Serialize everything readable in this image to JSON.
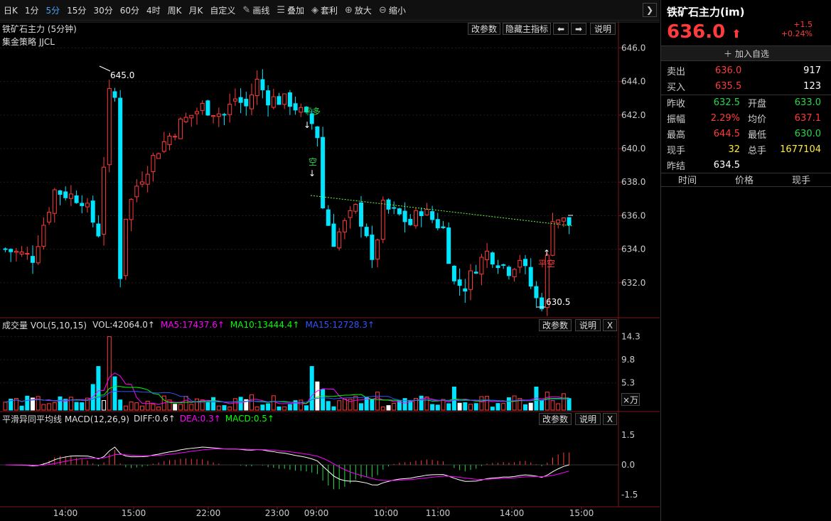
{
  "toolbar": {
    "periods": [
      "日K",
      "1分",
      "5分",
      "15分",
      "30分",
      "60分",
      "4时",
      "周K",
      "月K",
      "自定义"
    ],
    "active_period": "5分",
    "draw_line": "画线",
    "overlay": "叠加",
    "arbitrage": "套利",
    "zoom_in": "放大",
    "zoom_out": "缩小"
  },
  "main_panel": {
    "title": "铁矿石主力 (5分钟)",
    "strategy": "集金策略 JJCL",
    "buttons": {
      "change_params": "改参数",
      "hide_indicator": "隐藏主指标",
      "explain": "说明"
    },
    "y_ticks": [
      "646.0",
      "644.0",
      "642.0",
      "640.0",
      "638.0",
      "636.0",
      "634.0",
      "632.0"
    ],
    "high_label": "645.0",
    "low_label": "630.5",
    "signals": {
      "close_long": "平多",
      "short": "空",
      "close_short": "平空"
    }
  },
  "volume_panel": {
    "label": "成交量 VOL(5,10,15)",
    "vol": "VOL:42064.0↑",
    "ma5": "MA5:17437.6↑",
    "ma10": "MA10:13444.4↑",
    "ma15": "MA15:12728.3↑",
    "y_ticks": [
      "14.3",
      "9.8",
      "5.3"
    ],
    "unit": "×万",
    "buttons": {
      "change_params": "改参数",
      "explain": "说明",
      "close": "X"
    }
  },
  "macd_panel": {
    "label": "平滑异同平均线 MACD(12,26,9)",
    "diff": "DIFF:0.6↑",
    "dea": "DEA:0.3↑",
    "macd": "MACD:0.5↑",
    "y_ticks": [
      "1.5",
      "0.0",
      "-1.5"
    ],
    "buttons": {
      "change_params": "改参数",
      "explain": "说明",
      "close": "X"
    }
  },
  "time_axis": [
    "14:00",
    "15:00",
    "22:00",
    "23:00",
    "09:00",
    "10:00",
    "11:00",
    "14:00",
    "15:00"
  ],
  "quote": {
    "name": "铁矿石主力(im)",
    "price": "636.0",
    "change": "+1.5",
    "change_pct": "+0.24%",
    "add_watch": "加入自选",
    "sell_label": "卖出",
    "sell_price": "636.0",
    "sell_qty": "917",
    "buy_label": "买入",
    "buy_price": "635.5",
    "buy_qty": "123",
    "prev_close_label": "昨收",
    "prev_close": "632.5",
    "open_label": "开盘",
    "open": "633.0",
    "amplitude_label": "振幅",
    "amplitude": "2.29%",
    "avg_label": "均价",
    "avg": "637.1",
    "high_label": "最高",
    "high": "644.5",
    "low_label": "最低",
    "low": "630.0",
    "cur_vol_label": "现手",
    "cur_vol": "32",
    "total_vol_label": "总手",
    "total_vol": "1677104",
    "prev_settle_label": "昨结",
    "prev_settle": "634.5",
    "tick_headers": [
      "时间",
      "价格",
      "现手"
    ]
  },
  "colors": {
    "up": "#ff3b3b",
    "down": "#00e5ff",
    "ma5": "#ff00ff",
    "ma10": "#00ff00",
    "ma15": "#3355ff",
    "accent": "#49a3f5"
  }
}
